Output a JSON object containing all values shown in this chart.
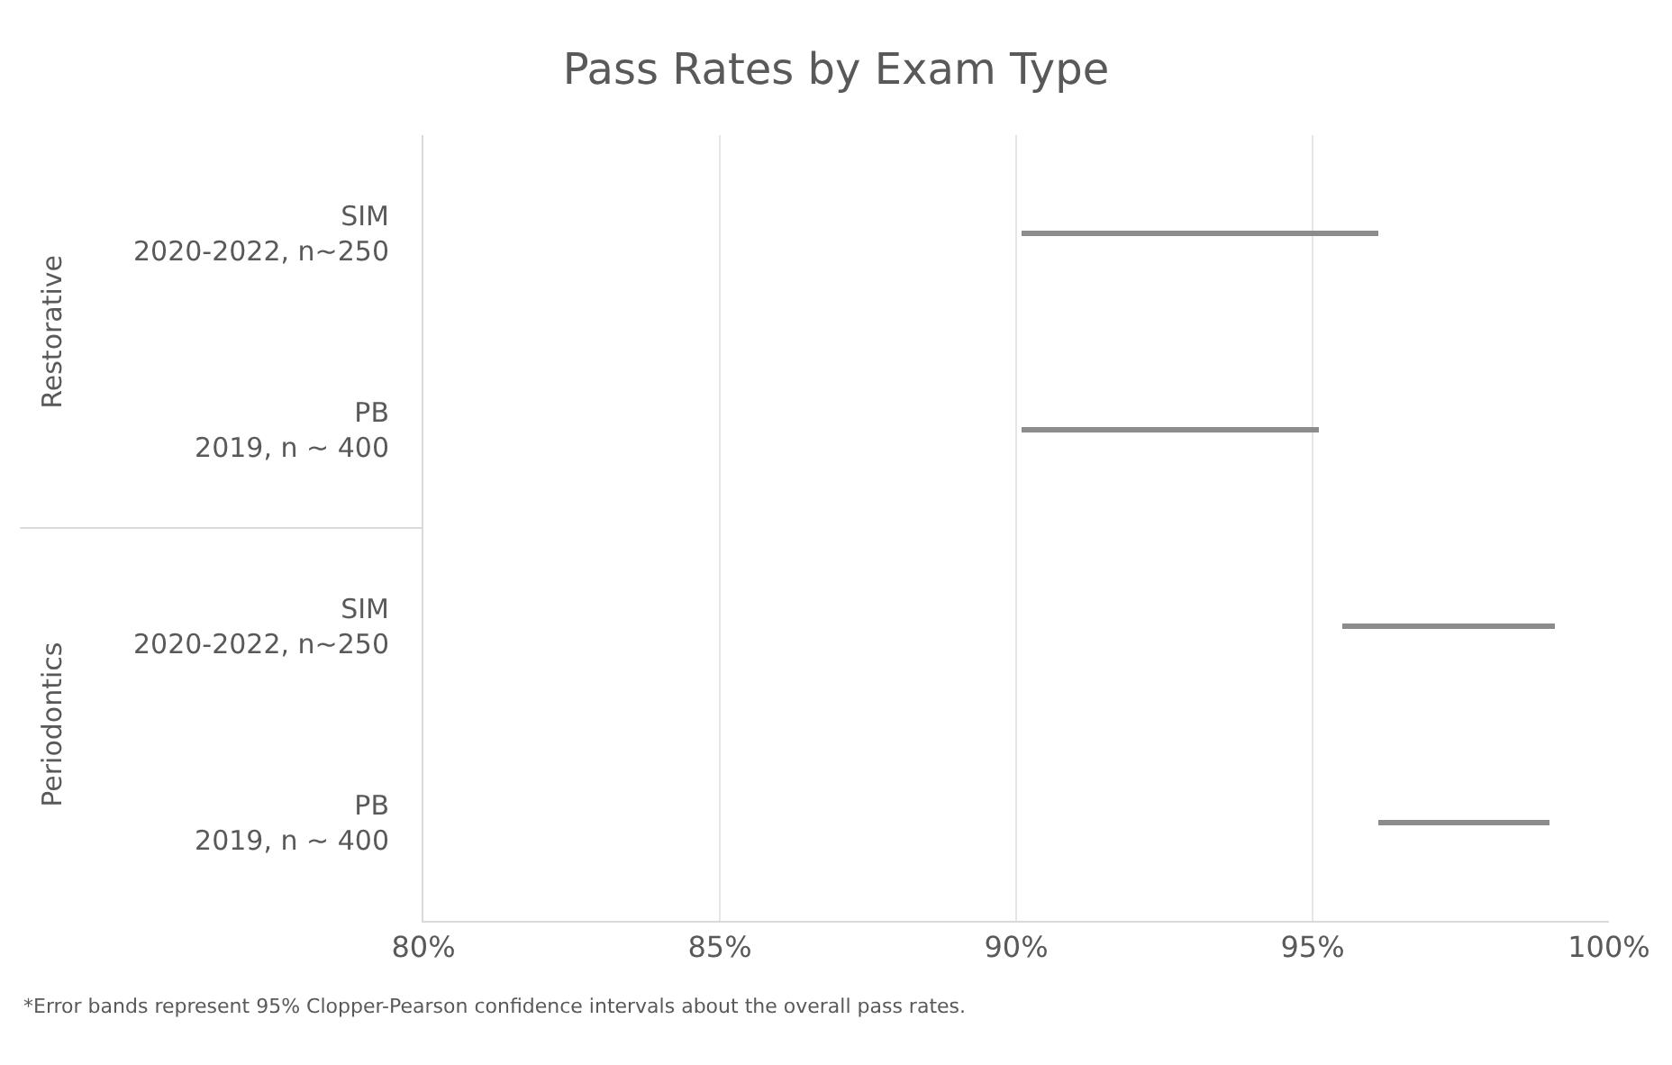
{
  "chart_data": {
    "type": "bar",
    "orientation": "horizontal",
    "title": "Pass Rates by Exam Type",
    "categories": [
      "SIM\n2020-2022, n~250",
      "PB\n2019, n ~ 400",
      "SIM\n2020-2022, n~250",
      "PB\n2019, n ~ 400"
    ],
    "base": [
      90.1,
      90.1,
      95.5,
      96.1
    ],
    "values": [
      6.0,
      5.0,
      3.6,
      2.9
    ],
    "color": "#8c8c8c",
    "xlim": [
      80,
      100
    ],
    "xticks": [
      {
        "value": 80,
        "label": "80%"
      },
      {
        "value": 85,
        "label": "85%"
      },
      {
        "value": 90,
        "label": "90%"
      },
      {
        "value": 95,
        "label": "95%"
      },
      {
        "value": 100,
        "label": "100%"
      }
    ],
    "grid": "x",
    "annotations": [
      "Restorative",
      "Periodontics",
      "*Error bands represent 95% Clopper-Pearson confidence intervals about the overall pass rates."
    ]
  }
}
